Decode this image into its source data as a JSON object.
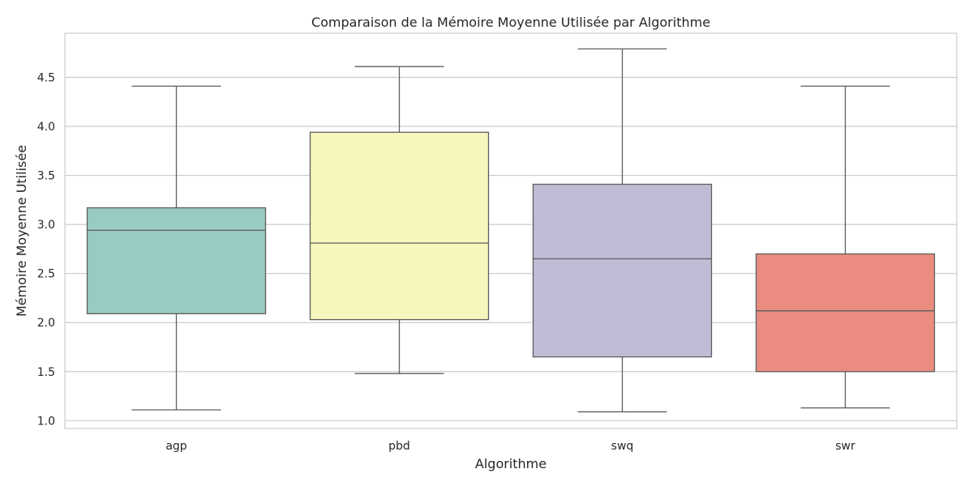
{
  "chart_data": {
    "type": "box",
    "title": "Comparaison de la Mémoire Moyenne Utilisée par Algorithme",
    "xlabel": "Algorithme",
    "ylabel": "Mémoire Moyenne Utilisée",
    "ylim": [
      0.92,
      4.95
    ],
    "yticks": [
      "1.0",
      "1.5",
      "2.0",
      "2.5",
      "3.0",
      "3.5",
      "4.0",
      "4.5"
    ],
    "grid": true,
    "categories": [
      "agp",
      "pbd",
      "swq",
      "swr"
    ],
    "boxes": [
      {
        "category": "agp",
        "min": 1.11,
        "q1": 2.09,
        "median": 2.94,
        "q3": 3.17,
        "max": 4.41,
        "color": "#98cbc2"
      },
      {
        "category": "pbd",
        "min": 1.48,
        "q1": 2.03,
        "median": 2.81,
        "q3": 3.94,
        "max": 4.61,
        "color": "#f6f6bd"
      },
      {
        "category": "swq",
        "min": 1.09,
        "q1": 1.65,
        "median": 2.65,
        "q3": 3.41,
        "max": 4.79,
        "color": "#c1bcd6"
      },
      {
        "category": "swr",
        "min": 1.13,
        "q1": 1.5,
        "median": 2.12,
        "q3": 2.7,
        "max": 4.41,
        "color": "#ea8c80"
      }
    ],
    "colors": {
      "grid": "#cccccc",
      "axes_edge": "#cccccc",
      "line": "#5f5f5f"
    }
  }
}
